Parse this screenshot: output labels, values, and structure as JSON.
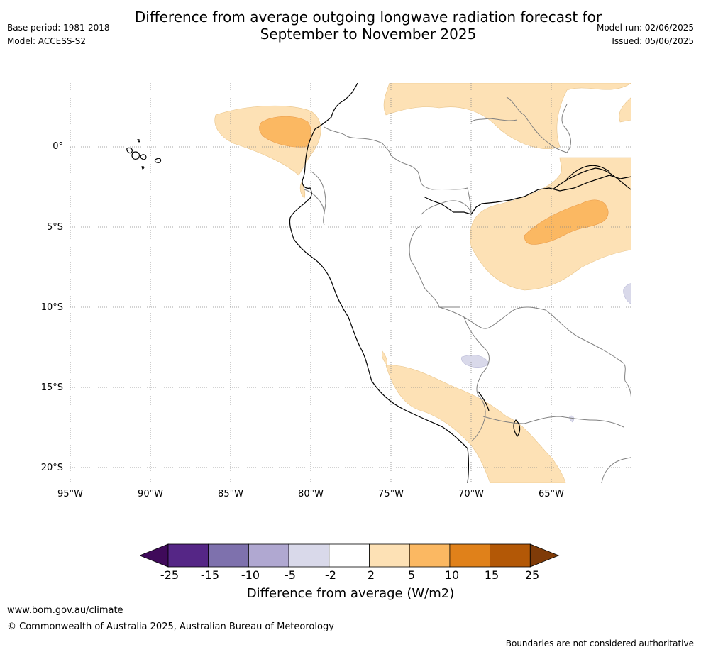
{
  "header": {
    "title_line1": "Difference from average outgoing longwave radiation forecast for",
    "title_line2": "September to November 2025",
    "base_period": "Base period: 1981-2018",
    "model": "Model: ACCESS-S2",
    "model_run": "Model run: 02/06/2025",
    "issued": "Issued: 05/06/2025"
  },
  "map": {
    "lat_labels": [
      "0°",
      "5°S",
      "10°S",
      "15°S",
      "20°S"
    ],
    "lon_labels": [
      "95°W",
      "90°W",
      "85°W",
      "80°W",
      "75°W",
      "70°W",
      "65°W"
    ],
    "colors": {
      "positive_light": "#fde1b5",
      "positive_mid": "#fbb862",
      "positive_strong": "#f89c3c",
      "negative_light": "#d9d9ea",
      "coastline": "#000000",
      "border": "#808080",
      "gridline": "#888888"
    }
  },
  "colorbar": {
    "ticks": [
      "-25",
      "-15",
      "-10",
      "-5",
      "-2",
      "2",
      "5",
      "10",
      "15",
      "25"
    ],
    "colors": [
      "#3f0a5a",
      "#552686",
      "#7e71ad",
      "#b0a8d1",
      "#d9d9ea",
      "#ffffff",
      "#fde1b5",
      "#fbb862",
      "#e0811a",
      "#b35806",
      "#7f3b08"
    ],
    "label": "Difference from average (W/m2)"
  },
  "footer": {
    "website": "www.bom.gov.au/climate",
    "copyright": "© Commonwealth of Australia 2025, Australian Bureau of Meteorology",
    "disclaimer": "Boundaries are not considered authoritative"
  }
}
